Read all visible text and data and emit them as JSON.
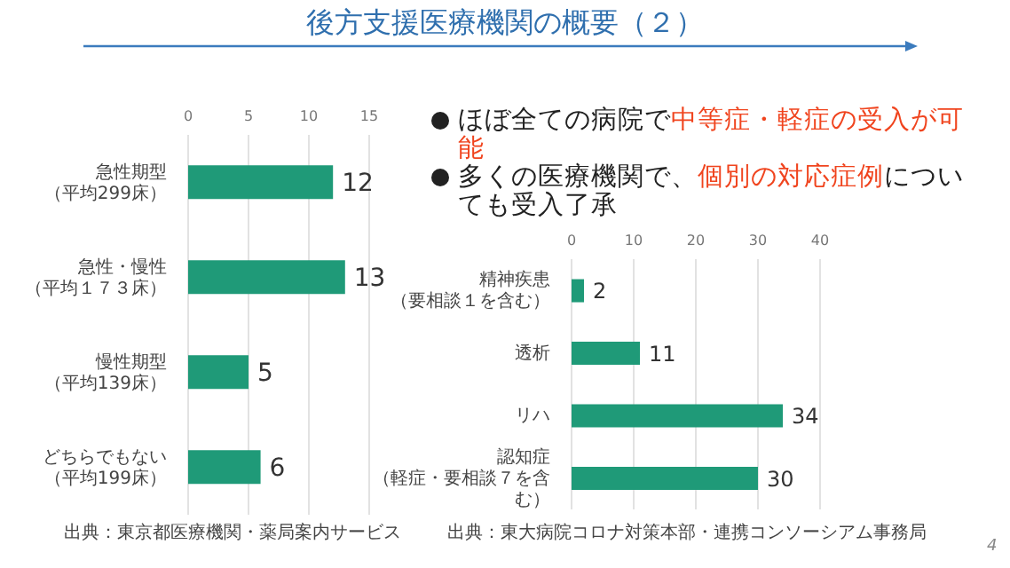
{
  "chart_data": [
    {
      "type": "bar",
      "orientation": "horizontal",
      "title": "後方支援医療機関の概要（２）",
      "categories": [
        "急性期型（平均299床）",
        "急性・慢性（平均１７３床）",
        "慢性期型（平均139床）",
        "どちらでもない（平均199床）"
      ],
      "values": [
        12,
        13,
        5,
        6
      ],
      "color": "#1f9a78",
      "xlim": [
        0,
        15
      ],
      "xticks": [
        0,
        5,
        10,
        15
      ],
      "grid": "x",
      "data_labels": true,
      "annotations": [
        "出典：東京都医療機関・薬局案内サービス"
      ]
    },
    {
      "type": "bar",
      "orientation": "horizontal",
      "categories": [
        "精神疾患（要相談１を含む）",
        "透析",
        "リハ",
        "認知症（軽症・要相談７を含む）"
      ],
      "values": [
        2,
        11,
        34,
        30
      ],
      "color": "#1f9a78",
      "xlim": [
        0,
        40
      ],
      "xticks": [
        0,
        10,
        20,
        30,
        40
      ],
      "grid": "x",
      "data_labels": true,
      "annotations": [
        "ほぼ全ての病院で",
        "中等症・軽症の受入が可能",
        "多くの医療機関で、",
        "個別の対応症例",
        "についても受入了承",
        "出典：東大病院コロナ対策本部・連携コンソーシアム事務局",
        "4"
      ]
    }
  ]
}
